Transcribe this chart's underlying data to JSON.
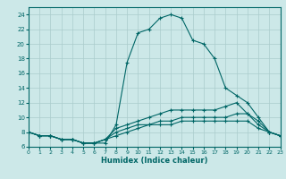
{
  "xlabel": "Humidex (Indice chaleur)",
  "bg_color": "#cce8e8",
  "grid_color": "#aacccc",
  "line_color": "#006666",
  "xlim": [
    0,
    23
  ],
  "ylim": [
    6,
    25
  ],
  "xticks": [
    0,
    1,
    2,
    3,
    4,
    5,
    6,
    7,
    8,
    9,
    10,
    11,
    12,
    13,
    14,
    15,
    16,
    17,
    18,
    19,
    20,
    21,
    22,
    23
  ],
  "yticks": [
    6,
    8,
    10,
    12,
    14,
    16,
    18,
    20,
    22,
    24
  ],
  "curve1_x": [
    0,
    1,
    2,
    3,
    4,
    5,
    6,
    7,
    8,
    9,
    10,
    11,
    12,
    13,
    14,
    15,
    16,
    17,
    18,
    19,
    20,
    21,
    22,
    23
  ],
  "curve1_y": [
    8,
    7.5,
    7.5,
    7,
    7,
    6.5,
    6.5,
    6.5,
    9,
    17.5,
    21.5,
    22,
    23.5,
    24,
    23.5,
    20.5,
    20,
    18,
    14,
    13,
    12,
    10,
    8,
    7.5
  ],
  "curve2_x": [
    0,
    1,
    2,
    3,
    4,
    5,
    6,
    7,
    8,
    9,
    10,
    11,
    12,
    13,
    14,
    15,
    16,
    17,
    18,
    19,
    20,
    21,
    22,
    23
  ],
  "curve2_y": [
    8,
    7.5,
    7.5,
    7,
    7,
    6.5,
    6.5,
    7,
    8.5,
    9,
    9.5,
    10,
    10.5,
    11,
    11,
    11,
    11,
    11,
    11.5,
    12,
    10.5,
    9.5,
    8,
    7.5
  ],
  "curve3_x": [
    0,
    1,
    2,
    3,
    4,
    5,
    6,
    7,
    8,
    9,
    10,
    11,
    12,
    13,
    14,
    15,
    16,
    17,
    18,
    19,
    20,
    21,
    22,
    23
  ],
  "curve3_y": [
    8,
    7.5,
    7.5,
    7,
    7,
    6.5,
    6.5,
    7,
    8,
    8.5,
    9,
    9,
    9.5,
    9.5,
    10,
    10,
    10,
    10,
    10,
    10.5,
    10.5,
    9,
    8,
    7.5
  ],
  "curve4_x": [
    0,
    1,
    2,
    3,
    4,
    5,
    6,
    7,
    8,
    9,
    10,
    11,
    12,
    13,
    14,
    15,
    16,
    17,
    18,
    19,
    20,
    21,
    22,
    23
  ],
  "curve4_y": [
    8,
    7.5,
    7.5,
    7,
    7,
    6.5,
    6.5,
    7,
    7.5,
    8,
    8.5,
    9,
    9,
    9,
    9.5,
    9.5,
    9.5,
    9.5,
    9.5,
    9.5,
    9.5,
    8.5,
    8,
    7.5
  ]
}
